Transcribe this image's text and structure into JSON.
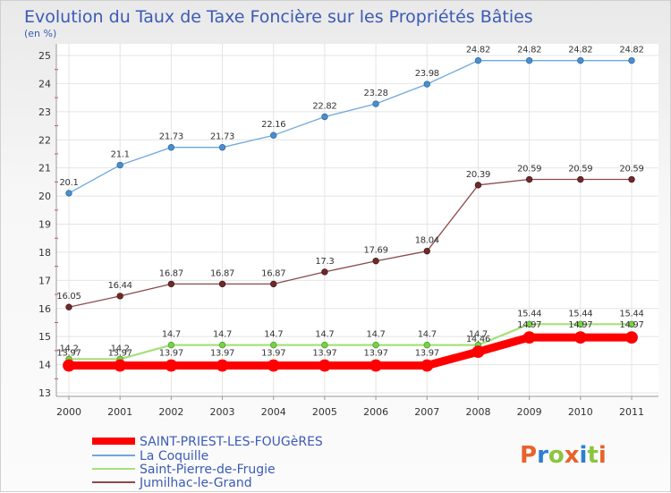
{
  "chart_data": {
    "type": "line",
    "title": "Evolution du Taux de Taxe Foncière sur les Propriétés Bâties",
    "subtitle": "(en %)",
    "x": [
      "2000",
      "2001",
      "2002",
      "2003",
      "2004",
      "2005",
      "2006",
      "2007",
      "2008",
      "2009",
      "2010",
      "2011"
    ],
    "ylim": [
      13,
      25
    ],
    "yticks": [
      "13",
      "14",
      "15",
      "16",
      "17",
      "18",
      "19",
      "20",
      "21",
      "22",
      "23",
      "24",
      "25"
    ],
    "grid": true,
    "legend_position": "bottom-left",
    "series": [
      {
        "name": "SAINT-PRIEST-LES-FOUGèRES",
        "color": "#ff0000",
        "values": [
          13.97,
          13.97,
          13.97,
          13.97,
          13.97,
          13.97,
          13.97,
          13.97,
          14.46,
          14.97,
          14.97,
          14.97
        ],
        "labels": [
          "13.97",
          "13.97",
          "13.97",
          "13.97",
          "13.97",
          "13.97",
          "13.97",
          "13.97",
          "14.46",
          "14.97",
          "14.97",
          "14.97"
        ]
      },
      {
        "name": "La Coquille",
        "color": "#6fa8dc",
        "values": [
          20.1,
          21.1,
          21.73,
          21.73,
          22.16,
          22.82,
          23.28,
          23.98,
          24.82,
          24.82,
          24.82,
          24.82
        ],
        "labels": [
          "20.1",
          "21.1",
          "21.73",
          "21.73",
          "22.16",
          "22.82",
          "23.28",
          "23.98",
          "24.82",
          "24.82",
          "24.82",
          "24.82"
        ]
      },
      {
        "name": "Saint-Pierre-de-Frugie",
        "color": "#a6e07a",
        "values": [
          14.2,
          14.2,
          14.7,
          14.7,
          14.7,
          14.7,
          14.7,
          14.7,
          14.7,
          15.44,
          15.44,
          15.44
        ],
        "labels": [
          "14.2",
          "14.2",
          "14.7",
          "14.7",
          "14.7",
          "14.7",
          "14.7",
          "14.7",
          "14.7",
          "15.44",
          "15.44",
          "15.44"
        ]
      },
      {
        "name": "Jumilhac-le-Grand",
        "color": "#8b4a4a",
        "values": [
          16.05,
          16.44,
          16.87,
          16.87,
          16.87,
          17.3,
          17.69,
          18.04,
          20.39,
          20.59,
          20.59,
          20.59
        ],
        "labels": [
          "16.05",
          "16.44",
          "16.87",
          "16.87",
          "16.87",
          "17.3",
          "17.69",
          "18.04",
          "20.39",
          "20.59",
          "20.59",
          "20.59"
        ]
      }
    ]
  },
  "logo": {
    "text": "Proxiti"
  }
}
